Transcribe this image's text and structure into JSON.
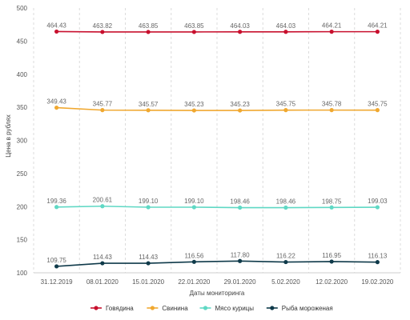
{
  "chart_data": {
    "type": "line",
    "categories": [
      "31.12.2019",
      "08.01.2020",
      "15.01.2020",
      "22.01.2020",
      "29.01.2020",
      "5.02.2020",
      "12.02.2020",
      "19.02.2020"
    ],
    "xlabel": "Даты мониторинга",
    "ylabel": "Цена в рублях",
    "ylim": [
      100,
      500
    ],
    "yticks": [
      100,
      150,
      200,
      250,
      300,
      350,
      400,
      450,
      500
    ],
    "grid": "vertical dashed",
    "legend_position": "bottom",
    "series": [
      {
        "name": "Говядина",
        "color": "#c8102e",
        "values": [
          464.43,
          463.82,
          463.85,
          463.85,
          464.03,
          464.03,
          464.21,
          464.21
        ],
        "labels": [
          "464.43",
          "463.82",
          "463.85",
          "463.85",
          "464.03",
          "464.03",
          "464.21",
          "464.21"
        ]
      },
      {
        "name": "Свинина",
        "color": "#f0a830",
        "values": [
          349.43,
          345.77,
          345.57,
          345.23,
          345.23,
          345.75,
          345.78,
          345.75
        ],
        "labels": [
          "349.43",
          "345.77",
          "345.57",
          "345.23",
          "345.23",
          "345.75",
          "345.78",
          "345.75"
        ]
      },
      {
        "name": "Мясо курицы",
        "color": "#5fd8c4",
        "values": [
          199.36,
          200.61,
          199.1,
          199.1,
          198.46,
          198.46,
          198.75,
          199.03
        ],
        "labels": [
          "199.36",
          "200.61",
          "199.10",
          "199.10",
          "198.46",
          "198.46",
          "198.75",
          "199.03"
        ]
      },
      {
        "name": "Рыба мороженая",
        "color": "#0f3a4a",
        "values": [
          109.75,
          114.43,
          114.43,
          116.56,
          117.8,
          116.22,
          116.95,
          116.13
        ],
        "labels": [
          "109.75",
          "114.43",
          "114.43",
          "116.56",
          "117.80",
          "116.22",
          "116.95",
          "116.13"
        ]
      }
    ]
  }
}
